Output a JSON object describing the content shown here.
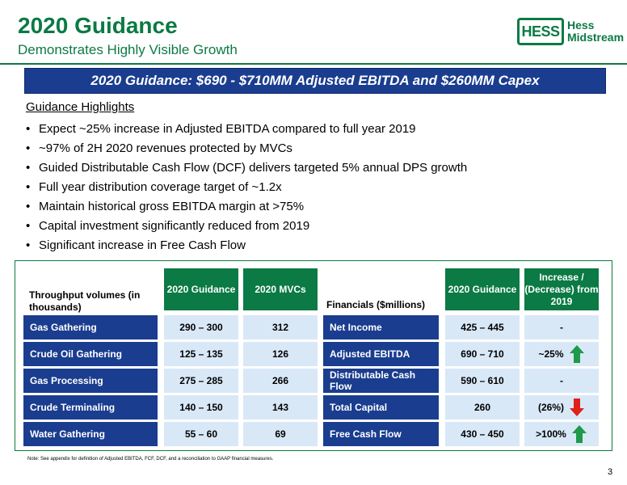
{
  "header": {
    "title": "2020 Guidance",
    "subtitle": "Demonstrates Highly Visible Growth",
    "logo_mark": "HESS",
    "logo_line1": "Hess",
    "logo_line2": "Midstream"
  },
  "banner": "2020 Guidance: $690 - $710MM Adjusted EBITDA and $260MM Capex",
  "highlights": {
    "title": "Guidance Highlights",
    "items": [
      "Expect ~25% increase in Adjusted EBITDA compared to full year 2019",
      "~97% of 2H 2020 revenues protected by MVCs",
      "Guided Distributable Cash Flow (DCF) delivers targeted 5% annual DPS growth",
      "Full year distribution coverage target of ~1.2x",
      "Maintain historical gross EBITDA margin at >75%",
      "Capital investment significantly reduced from 2019",
      "Significant increase in Free Cash Flow"
    ]
  },
  "throughput": {
    "label": "Throughput volumes (in thousands)",
    "col1": "2020 Guidance",
    "col2": "2020 MVCs",
    "rows": [
      {
        "name": "Gas Gathering",
        "guidance": "290 – 300",
        "mvc": "312"
      },
      {
        "name": "Crude Oil Gathering",
        "guidance": "125 – 135",
        "mvc": "126"
      },
      {
        "name": "Gas Processing",
        "guidance": "275 – 285",
        "mvc": "266"
      },
      {
        "name": "Crude Terminaling",
        "guidance": "140 – 150",
        "mvc": "143"
      },
      {
        "name": "Water Gathering",
        "guidance": "55 – 60",
        "mvc": "69"
      }
    ]
  },
  "financials": {
    "label": "Financials ($millions)",
    "col1": "2020 Guidance",
    "col2": "Increase / (Decrease) from 2019",
    "rows": [
      {
        "name": "Net Income",
        "guidance": "425 – 445",
        "change": "-",
        "arrow": "none"
      },
      {
        "name": "Adjusted EBITDA",
        "guidance": "690 – 710",
        "change": "~25%",
        "arrow": "up"
      },
      {
        "name": "Distributable Cash Flow",
        "guidance": "590 – 610",
        "change": "-",
        "arrow": "none"
      },
      {
        "name": "Total Capital",
        "guidance": "260",
        "change": "(26%)",
        "arrow": "down"
      },
      {
        "name": "Free Cash Flow",
        "guidance": "430 – 450",
        "change": ">100%",
        "arrow": "up"
      }
    ]
  },
  "colors": {
    "green": "#0b7a44",
    "blue": "#1a3d8f",
    "light_blue": "#d9e8f7",
    "up_arrow": "#1e9a4a",
    "down_arrow": "#e0201b"
  },
  "footnote": "Note: See appendix for definition of Adjusted EBITDA, FCF, DCF, and a reconciliation to GAAP financial measures.",
  "page_number": "3"
}
